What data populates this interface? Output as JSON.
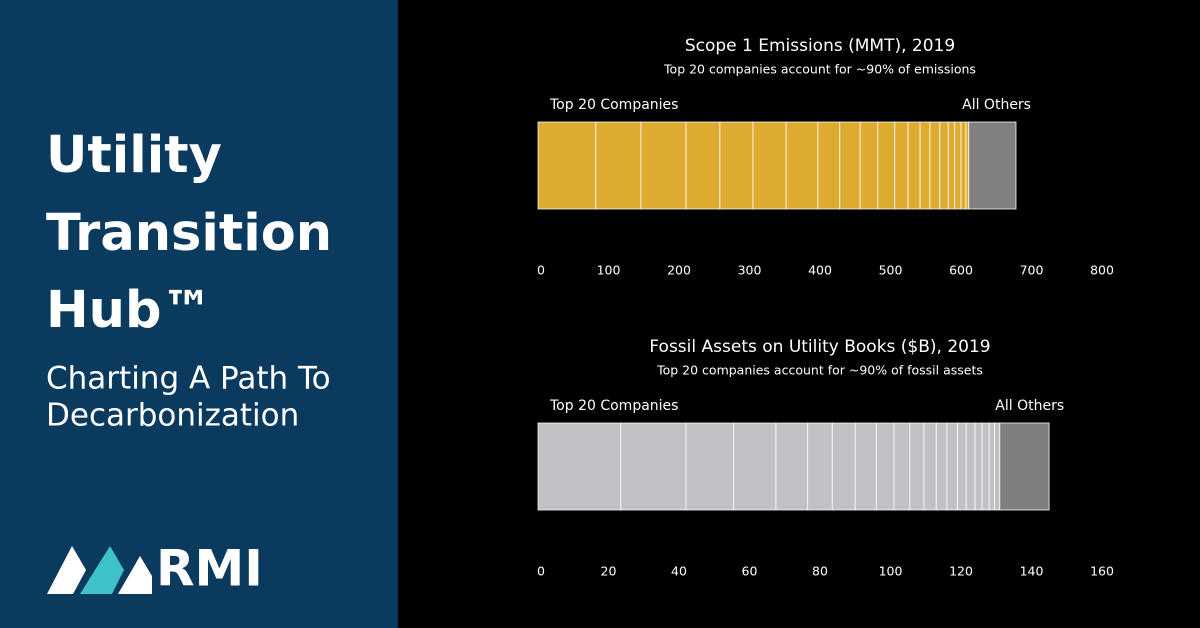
{
  "header": {
    "title_lines": [
      "Utility",
      "Transition",
      "Hub™"
    ],
    "subtitle_lines": [
      "Charting A Path To",
      "Decarbonization"
    ],
    "logo": "RMI"
  },
  "chart_data": [
    {
      "type": "stacked_bar",
      "title": "Scope 1 Emissions (MMT), 2019",
      "subtitle": "Top 20 companies account for ~90% of emissions",
      "series": [
        {
          "name": "Top 20 Companies",
          "color": "#dcab2f",
          "values": [
            82,
            64,
            64,
            48,
            47,
            47,
            45,
            31,
            29,
            25,
            24,
            19,
            17,
            14,
            14,
            12,
            9,
            9,
            7,
            4
          ]
        },
        {
          "name": "All Others",
          "color": "#808080",
          "values": [
            67
          ]
        }
      ],
      "xlim": [
        0,
        800
      ],
      "xticks": [
        0,
        100,
        200,
        300,
        400,
        500,
        600,
        700,
        800
      ]
    },
    {
      "type": "stacked_bar",
      "title": "Fossil Assets on Utility Books ($B), 2019",
      "subtitle": "Top 20 companies account for ~90% of fossil assets",
      "series": [
        {
          "name": "Top 20 Companies",
          "color": "#c0c1c5",
          "values": [
            23.5,
            18.5,
            13.5,
            12,
            9,
            7,
            6.5,
            6,
            5,
            4.5,
            4,
            3.5,
            3,
            3,
            2.5,
            2.5,
            2,
            2,
            1.5,
            1.5
          ]
        },
        {
          "name": "All Others",
          "color": "#7f7f7f",
          "values": [
            14
          ]
        }
      ],
      "xlim": [
        0,
        160
      ],
      "xticks": [
        0,
        20,
        40,
        60,
        80,
        100,
        120,
        140,
        160
      ]
    }
  ]
}
